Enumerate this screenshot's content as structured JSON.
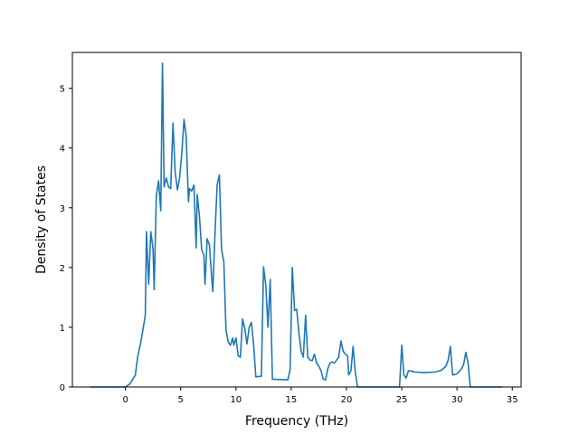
{
  "chart_data": {
    "type": "line",
    "title": "",
    "xlabel": "Frequency (THz)",
    "ylabel": "Density of States",
    "xlim": [
      -4.8,
      35.8
    ],
    "ylim": [
      0,
      5.6
    ],
    "xticks": [
      0,
      5,
      10,
      15,
      20,
      25,
      30,
      35
    ],
    "yticks": [
      0,
      1,
      2,
      3,
      4,
      5
    ],
    "grid": false,
    "line_color": "#1f77b4",
    "series": [
      {
        "points": [
          [
            -3.2,
            0
          ],
          [
            0,
            0
          ],
          [
            0.4,
            0.05
          ],
          [
            0.9,
            0.2
          ],
          [
            1.1,
            0.5
          ],
          [
            1.4,
            0.75
          ],
          [
            1.8,
            1.2
          ],
          [
            1.9,
            2.6
          ],
          [
            2.1,
            1.72
          ],
          [
            2.3,
            2.6
          ],
          [
            2.5,
            2.3
          ],
          [
            2.6,
            1.63
          ],
          [
            2.8,
            3.2
          ],
          [
            3.0,
            3.45
          ],
          [
            3.2,
            2.95
          ],
          [
            3.35,
            5.42
          ],
          [
            3.5,
            3.35
          ],
          [
            3.7,
            3.5
          ],
          [
            3.9,
            3.35
          ],
          [
            4.1,
            3.32
          ],
          [
            4.3,
            4.42
          ],
          [
            4.5,
            3.6
          ],
          [
            4.7,
            3.3
          ],
          [
            4.9,
            3.5
          ],
          [
            5.1,
            3.9
          ],
          [
            5.3,
            4.48
          ],
          [
            5.5,
            4.2
          ],
          [
            5.7,
            3.1
          ],
          [
            5.8,
            3.32
          ],
          [
            6.0,
            3.28
          ],
          [
            6.2,
            3.38
          ],
          [
            6.4,
            2.33
          ],
          [
            6.5,
            3.22
          ],
          [
            6.7,
            2.85
          ],
          [
            6.9,
            2.3
          ],
          [
            7.1,
            2.2
          ],
          [
            7.2,
            1.72
          ],
          [
            7.4,
            2.48
          ],
          [
            7.6,
            2.38
          ],
          [
            7.8,
            1.85
          ],
          [
            7.9,
            1.6
          ],
          [
            8.1,
            2.55
          ],
          [
            8.3,
            3.38
          ],
          [
            8.5,
            3.55
          ],
          [
            8.7,
            2.3
          ],
          [
            8.9,
            2.1
          ],
          [
            9.1,
            0.95
          ],
          [
            9.3,
            0.75
          ],
          [
            9.5,
            0.7
          ],
          [
            9.7,
            0.82
          ],
          [
            9.8,
            0.7
          ],
          [
            10.0,
            0.82
          ],
          [
            10.2,
            0.52
          ],
          [
            10.4,
            0.5
          ],
          [
            10.6,
            1.14
          ],
          [
            10.8,
            0.98
          ],
          [
            11.0,
            0.72
          ],
          [
            11.2,
            1.0
          ],
          [
            11.4,
            1.08
          ],
          [
            11.6,
            0.7
          ],
          [
            11.8,
            0.17
          ],
          [
            12.3,
            0.18
          ],
          [
            12.5,
            2.01
          ],
          [
            12.7,
            1.7
          ],
          [
            12.9,
            1.0
          ],
          [
            13.1,
            1.8
          ],
          [
            13.3,
            0.13
          ],
          [
            14.7,
            0.12
          ],
          [
            14.9,
            0.3
          ],
          [
            15.1,
            2.0
          ],
          [
            15.3,
            1.28
          ],
          [
            15.5,
            1.3
          ],
          [
            15.7,
            0.9
          ],
          [
            15.9,
            0.6
          ],
          [
            16.1,
            0.5
          ],
          [
            16.3,
            1.2
          ],
          [
            16.5,
            0.5
          ],
          [
            16.7,
            0.45
          ],
          [
            16.9,
            0.44
          ],
          [
            17.1,
            0.55
          ],
          [
            17.3,
            0.4
          ],
          [
            17.5,
            0.35
          ],
          [
            17.7,
            0.27
          ],
          [
            17.9,
            0.13
          ],
          [
            18.1,
            0.12
          ],
          [
            18.3,
            0.3
          ],
          [
            18.5,
            0.4
          ],
          [
            18.7,
            0.42
          ],
          [
            18.9,
            0.4
          ],
          [
            19.1,
            0.45
          ],
          [
            19.3,
            0.5
          ],
          [
            19.5,
            0.77
          ],
          [
            19.7,
            0.6
          ],
          [
            19.9,
            0.55
          ],
          [
            20.1,
            0.52
          ],
          [
            20.2,
            0.2
          ],
          [
            20.4,
            0.27
          ],
          [
            20.6,
            0.68
          ],
          [
            20.8,
            0.25
          ],
          [
            21.0,
            0
          ],
          [
            24.8,
            0
          ],
          [
            25.0,
            0.7
          ],
          [
            25.2,
            0.2
          ],
          [
            25.4,
            0.15
          ],
          [
            25.6,
            0.27
          ],
          [
            25.8,
            0.27
          ],
          [
            26.2,
            0.25
          ],
          [
            27.0,
            0.24
          ],
          [
            28.0,
            0.25
          ],
          [
            28.6,
            0.28
          ],
          [
            29.0,
            0.35
          ],
          [
            29.2,
            0.45
          ],
          [
            29.4,
            0.68
          ],
          [
            29.6,
            0.2
          ],
          [
            30.0,
            0.22
          ],
          [
            30.4,
            0.3
          ],
          [
            30.6,
            0.38
          ],
          [
            30.8,
            0.58
          ],
          [
            31.0,
            0.4
          ],
          [
            31.2,
            0
          ],
          [
            34.1,
            0
          ]
        ]
      }
    ]
  }
}
